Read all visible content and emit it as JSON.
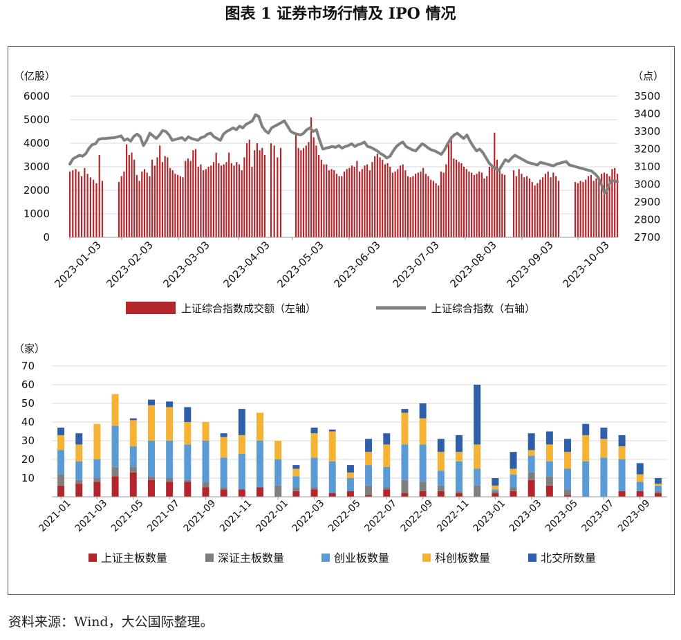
{
  "figure_title": "图表 1  证券市场行情及 IPO 情况",
  "source": "资料来源：Wind，大公国际整理。",
  "colors": {
    "sh_turnover": "#B5262C",
    "sh_index": "#808080",
    "sh_main": "#B5262C",
    "sz_main": "#7F7F7F",
    "chinext": "#5B9BD5",
    "star": "#F5B335",
    "bse": "#2F5FA8"
  },
  "chart_data": [
    {
      "type": "bar+line",
      "left_unit": "（亿股）",
      "right_unit": "（点）",
      "left_ticks": [
        "0",
        "1000",
        "2000",
        "3000",
        "4000",
        "5000",
        "6000"
      ],
      "right_ticks": [
        "2700",
        "2800",
        "2900",
        "3000",
        "3100",
        "3200",
        "3300",
        "3400",
        "3500"
      ],
      "ylim_left": [
        0,
        6000
      ],
      "ylim_right": [
        2700,
        3500
      ],
      "x_ticks": [
        "2023-01-03",
        "2023-02-03",
        "2023-03-03",
        "2023-04-03",
        "2023-05-03",
        "2023-06-03",
        "2023-07-03",
        "2023-08-03",
        "2023-09-03",
        "2023-10-03"
      ],
      "grid": true,
      "legend_position": "bottom",
      "series": [
        {
          "name": "上证综合指数成交额（左轴）",
          "type": "bar",
          "axis": "left",
          "values": [
            2800,
            2850,
            2900,
            2800,
            2600,
            2950,
            2700,
            2550,
            2450,
            2300,
            3500,
            2400,
            2350,
            2600,
            2800,
            3950,
            3500,
            3600,
            3300,
            2650,
            2400,
            2800,
            2900,
            2750,
            2600,
            3300,
            3050,
            3400,
            3900,
            3200,
            3450,
            3400,
            2950,
            2850,
            2700,
            2650,
            2600,
            2550,
            3250,
            3350,
            3250,
            3700,
            3750,
            3000,
            3100,
            2850,
            2900,
            3000,
            3050,
            3200,
            3600,
            3150,
            3050,
            3100,
            3200,
            3600,
            3150,
            3050,
            3200,
            3100,
            2850,
            3400,
            4000,
            4150,
            3000,
            3700,
            4000,
            3700,
            3800,
            3500,
            4000,
            3900,
            3400,
            3800,
            4400,
            3800,
            3700,
            3800,
            3900,
            4050,
            5100,
            4250,
            3900,
            3500,
            3300,
            3100,
            3100,
            2850,
            2900,
            2850,
            2700,
            2600,
            2600,
            2800,
            2900,
            2950,
            3050,
            3000,
            3250,
            2800,
            2900,
            3050,
            3100,
            2850,
            3200,
            3450,
            3550,
            3400,
            3300,
            3100,
            3150,
            3000,
            2750,
            2800,
            2900,
            3050,
            3100,
            2850,
            2600,
            2550,
            2600,
            2700,
            2750,
            2800,
            2950,
            2700,
            2600,
            2450,
            2400,
            2300,
            2200,
            2800,
            2750,
            3100,
            4000,
            4300,
            3350,
            3300,
            3200,
            3150,
            3000,
            2900,
            2800,
            2750,
            2650,
            2700,
            2800,
            2750,
            2500,
            2600,
            3000,
            3100,
            4450,
            3300,
            2900,
            2700,
            2650,
            2850,
            2600,
            2900,
            2700,
            2550,
            2600,
            2500,
            2350,
            2200,
            2300,
            2450,
            2550,
            2700,
            2800,
            2550,
            2750,
            2600,
            2400,
            2350,
            2300,
            2400,
            2350,
            2450,
            2600,
            2650,
            2400,
            2500,
            2550,
            2700,
            2750,
            2700,
            2600,
            2900,
            2950,
            2700,
            2800,
            3000,
            3050,
            3100,
            3600,
            3200,
            2600
          ]
        },
        {
          "name": "上证综合指数（右轴）",
          "type": "line",
          "axis": "right",
          "values": [
            3115,
            3145,
            3155,
            3165,
            3160,
            3175,
            3205,
            3225,
            3230,
            3255,
            3260,
            3260,
            3262,
            3264,
            3265,
            3270,
            3275,
            3250,
            3258,
            3245,
            3272,
            3285,
            3270,
            3220,
            3250,
            3290,
            3275,
            3260,
            3280,
            3305,
            3300,
            3280,
            3250,
            3255,
            3260,
            3265,
            3250,
            3270,
            3260,
            3255,
            3250,
            3265,
            3270,
            3285,
            3290,
            3270,
            3260,
            3250,
            3285,
            3300,
            3310,
            3320,
            3310,
            3330,
            3320,
            3340,
            3350,
            3360,
            3395,
            3385,
            3330,
            3305,
            3290,
            3320,
            3330,
            3340,
            3350,
            3360,
            3330,
            3300,
            3290,
            3285,
            3280,
            3290,
            3310,
            3320,
            3300,
            3310,
            3250,
            3200,
            3205,
            3210,
            3215,
            3210,
            3220,
            3205,
            3215,
            3220,
            3230,
            3215,
            3225,
            3230,
            3240,
            3215,
            3210,
            3200,
            3190,
            3175,
            3165,
            3150,
            3160,
            3190,
            3215,
            3230,
            3240,
            3215,
            3205,
            3195,
            3190,
            3210,
            3230,
            3220,
            3205,
            3195,
            3190,
            3180,
            3170,
            3195,
            3230,
            3260,
            3280,
            3290,
            3275,
            3260,
            3280,
            3245,
            3215,
            3190,
            3200,
            3180,
            3150,
            3120,
            3100,
            3090,
            3080,
            3110,
            3140,
            3130,
            3150,
            3165,
            3155,
            3145,
            3135,
            3125,
            3120,
            3115,
            3110,
            3125,
            3120,
            3115,
            3110,
            3105,
            3115,
            3120,
            3125,
            3130,
            3110,
            3105,
            3100,
            3095,
            3090,
            3085,
            3080,
            3075,
            3060,
            3040,
            3000,
            2950,
            2980,
            3020,
            3020,
            3015
          ]
        }
      ]
    },
    {
      "type": "bar",
      "stacked": true,
      "y_unit": "（家）",
      "y_ticks": [
        "10",
        "20",
        "30",
        "40",
        "50",
        "60",
        "70"
      ],
      "ylim": [
        0,
        70
      ],
      "grid": true,
      "legend_position": "bottom",
      "categories": [
        "2021-01",
        "2021-02",
        "2021-03",
        "2021-04",
        "2021-05",
        "2021-06",
        "2021-07",
        "2021-08",
        "2021-09",
        "2021-10",
        "2021-11",
        "2021-12",
        "2022-01",
        "2022-02",
        "2022-03",
        "2022-04",
        "2022-05",
        "2022-06",
        "2022-07",
        "2022-08",
        "2022-09",
        "2022-10",
        "2022-11",
        "2022-12",
        "2023-01",
        "2023-02",
        "2023-03",
        "2023-04",
        "2023-05",
        "2023-06",
        "2023-07",
        "2023-08",
        "2023-09",
        "2023-10"
      ],
      "x_tick_labels": [
        "2021-01",
        "2021-03",
        "2021-05",
        "2021-07",
        "2021-09",
        "2021-11",
        "2022-01",
        "2022-03",
        "2022-05",
        "2022-07",
        "2022-09",
        "2022-11",
        "2023-01",
        "2023-03",
        "2023-05",
        "2023-07",
        "2023-09"
      ],
      "series": [
        {
          "name": "上证主板数量",
          "values": [
            6,
            7,
            8,
            11,
            13,
            9,
            8,
            8,
            5,
            4,
            4,
            5,
            0,
            3,
            4,
            2,
            3,
            1,
            4,
            2,
            3,
            3,
            2,
            0,
            2,
            3,
            9,
            6,
            1,
            0,
            0,
            3,
            3,
            2
          ]
        },
        {
          "name": "深证主板数量",
          "values": [
            6,
            2,
            2,
            5,
            3,
            2,
            2,
            1,
            3,
            1,
            0,
            0,
            6,
            2,
            1,
            0,
            0,
            5,
            1,
            7,
            5,
            3,
            1,
            6,
            1,
            2,
            4,
            5,
            3,
            0,
            0,
            0,
            0,
            1
          ]
        },
        {
          "name": "创业板数量",
          "values": [
            13,
            10,
            10,
            22,
            11,
            19,
            20,
            19,
            22,
            16,
            19,
            25,
            14,
            6,
            16,
            17,
            7,
            11,
            11,
            19,
            20,
            8,
            16,
            9,
            1,
            7,
            9,
            8,
            11,
            19,
            21,
            17,
            5,
            3
          ]
        },
        {
          "name": "科创板数量",
          "values": [
            8,
            9,
            19,
            17,
            14,
            19,
            18,
            12,
            10,
            11,
            10,
            15,
            10,
            4,
            13,
            16,
            3,
            7,
            12,
            17,
            14,
            10,
            5,
            13,
            2,
            3,
            3,
            9,
            9,
            14,
            10,
            7,
            4,
            1
          ]
        },
        {
          "name": "北交所数量",
          "values": [
            4,
            6,
            0,
            0,
            1,
            3,
            3,
            8,
            0,
            2,
            14,
            0,
            0,
            2,
            3,
            1,
            4,
            7,
            6,
            2,
            8,
            7,
            9,
            32,
            4,
            9,
            9,
            7,
            7,
            6,
            6,
            6,
            6,
            3
          ]
        }
      ]
    }
  ]
}
